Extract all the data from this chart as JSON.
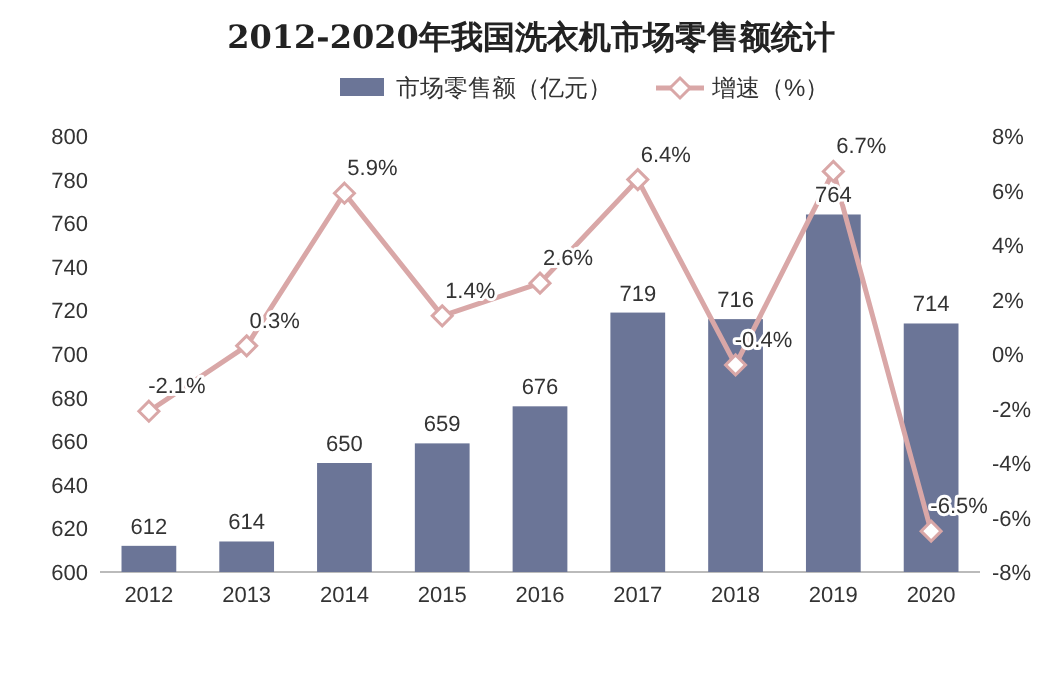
{
  "chart_data": {
    "type": "bar",
    "title": "2012-2020年我国洗衣机市场零售额统计",
    "categories": [
      "2012",
      "2013",
      "2014",
      "2015",
      "2016",
      "2017",
      "2018",
      "2019",
      "2020"
    ],
    "series": [
      {
        "name": "市场零售额（亿元）",
        "color": "#6b7597",
        "values": [
          612,
          614,
          650,
          659,
          676,
          719,
          716,
          764,
          714
        ],
        "value_labels": [
          "612",
          "614",
          "650",
          "659",
          "676",
          "719",
          "716",
          "764",
          "714"
        ]
      },
      {
        "name": "增速（%）",
        "type": "line",
        "axis": "y2",
        "color": "#d9a7a7",
        "marker": "diamond",
        "values": [
          -2.1,
          0.3,
          5.9,
          1.4,
          2.6,
          6.4,
          -0.4,
          6.7,
          -6.5
        ],
        "value_labels": [
          "-2.1%",
          "0.3%",
          "5.9%",
          "1.4%",
          "2.6%",
          "6.4%",
          "-0.4%",
          "6.7%",
          "-6.5%"
        ]
      }
    ],
    "ylim": [
      600,
      800
    ],
    "yticks": [
      600,
      620,
      640,
      660,
      680,
      700,
      720,
      740,
      760,
      780,
      800
    ],
    "y2lim": [
      -8,
      8
    ],
    "y2ticks": [
      {
        "value": -8,
        "label": "-8%"
      },
      {
        "value": -6,
        "label": "-6%"
      },
      {
        "value": -4,
        "label": "-4%"
      },
      {
        "value": -2,
        "label": "-2%"
      },
      {
        "value": 0,
        "label": "0%"
      },
      {
        "value": 2,
        "label": "2%"
      },
      {
        "value": 4,
        "label": "4%"
      },
      {
        "value": 6,
        "label": "6%"
      },
      {
        "value": 8,
        "label": "8%"
      }
    ],
    "grid": false,
    "legend": "top"
  }
}
